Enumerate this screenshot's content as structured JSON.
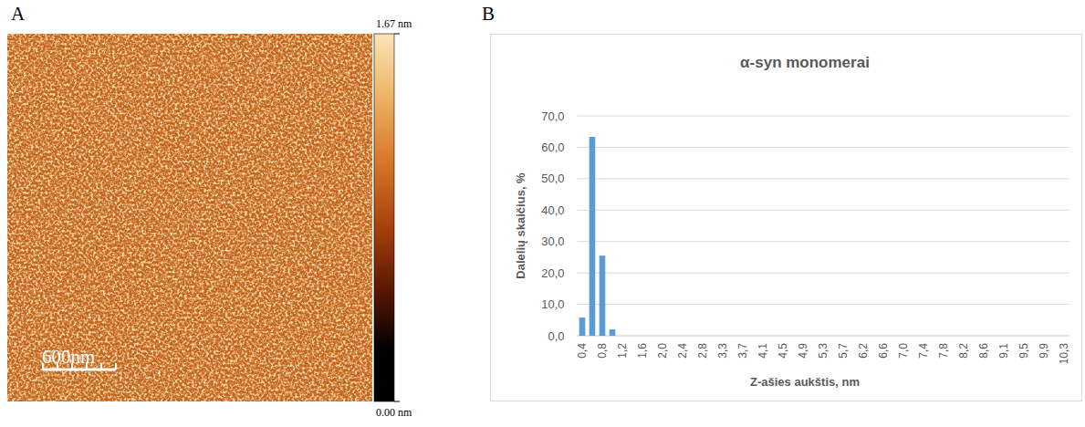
{
  "image_panel": {
    "letter": "A",
    "colorbar": {
      "range": [
        0,
        1.67
      ],
      "ticks": [
        {
          "value": 0,
          "label": "0.00 nm"
        },
        {
          "value": 1.67,
          "label": "1.67 nm"
        }
      ]
    },
    "scale_bar": {
      "label": "600nm"
    }
  },
  "chart_data": {
    "panel_letter": "B",
    "type": "bar",
    "title": "α-syn monomerai",
    "x_label": "Z-ašies aukštis, nm",
    "y_label": "Dalelių skaičius, %",
    "categories": [
      "0,4",
      null,
      "0,8",
      null,
      "1,2",
      null,
      "1,6",
      null,
      "2,0",
      null,
      "2,4",
      null,
      "2,8",
      null,
      "3,3",
      null,
      "3,7",
      null,
      "4,1",
      null,
      "4,5",
      null,
      "4,9",
      null,
      "5,3",
      null,
      "5,7",
      null,
      "6,2",
      null,
      "6,6",
      null,
      "7,0",
      null,
      "7,4",
      null,
      "7,8",
      null,
      "8,2",
      null,
      "8,6",
      null,
      "9,1",
      null,
      "9,5",
      null,
      "9,9",
      null,
      "10,3"
    ],
    "values": [
      5.8,
      63.3,
      25.5,
      2.0,
      0,
      0,
      0,
      0,
      0,
      0,
      0,
      0,
      0,
      0,
      0,
      0,
      0,
      0,
      0,
      0,
      0,
      0,
      0,
      0,
      0,
      0,
      0,
      0,
      0,
      0,
      0,
      0,
      0,
      0,
      0,
      0,
      0,
      0,
      0,
      0,
      0,
      0,
      0,
      0,
      0,
      0,
      0,
      0,
      0
    ],
    "color": "#5b9bd5",
    "ylim": [
      0,
      70
    ],
    "yticks": [
      {
        "value": 0,
        "label": "0,0"
      },
      {
        "value": 10,
        "label": "10,0"
      },
      {
        "value": 20,
        "label": "20,0"
      },
      {
        "value": 30,
        "label": "30,0"
      },
      {
        "value": 40,
        "label": "40,0"
      },
      {
        "value": 50,
        "label": "50,0"
      },
      {
        "value": 60,
        "label": "60,0"
      },
      {
        "value": 70,
        "label": "70,0"
      }
    ],
    "grid": true
  }
}
